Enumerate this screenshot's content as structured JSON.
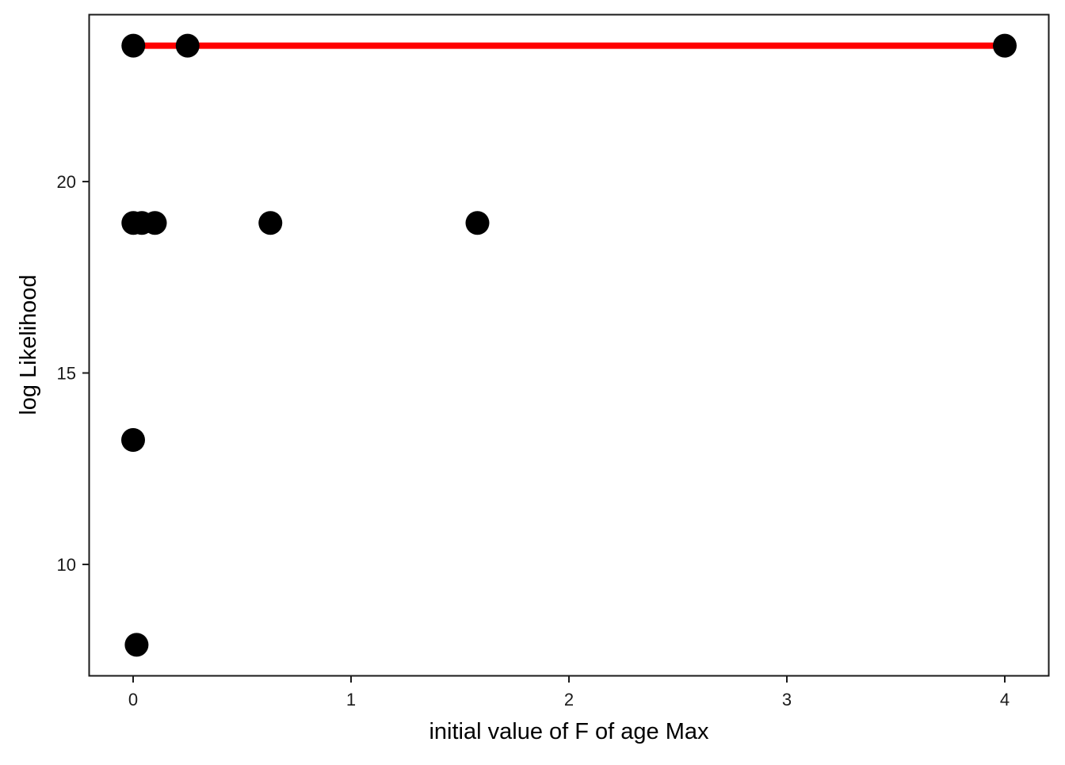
{
  "chart_data": {
    "type": "scatter",
    "xlabel": "initial value of F of age Max",
    "ylabel": "log Likelihood",
    "xlim": [
      -0.2,
      4.2
    ],
    "ylim": [
      7.1,
      24.35
    ],
    "x_ticks": [
      0,
      1,
      2,
      3,
      4
    ],
    "y_ticks": [
      10,
      15,
      20
    ],
    "grid": false,
    "points": [
      {
        "x": 0.001,
        "y": 23.55
      },
      {
        "x": 0.25,
        "y": 23.55
      },
      {
        "x": 4.0,
        "y": 23.55
      },
      {
        "x": 0.001,
        "y": 18.92
      },
      {
        "x": 0.04,
        "y": 18.92
      },
      {
        "x": 0.1,
        "y": 18.92
      },
      {
        "x": 0.63,
        "y": 18.92
      },
      {
        "x": 1.58,
        "y": 18.92
      },
      {
        "x": 0.0,
        "y": 13.25
      },
      {
        "x": 0.016,
        "y": 7.9
      }
    ],
    "reference_line": {
      "y": 23.55,
      "x_from": 0.0,
      "x_to": 4.0,
      "color": "#ff0000"
    },
    "point_color": "#000000"
  }
}
